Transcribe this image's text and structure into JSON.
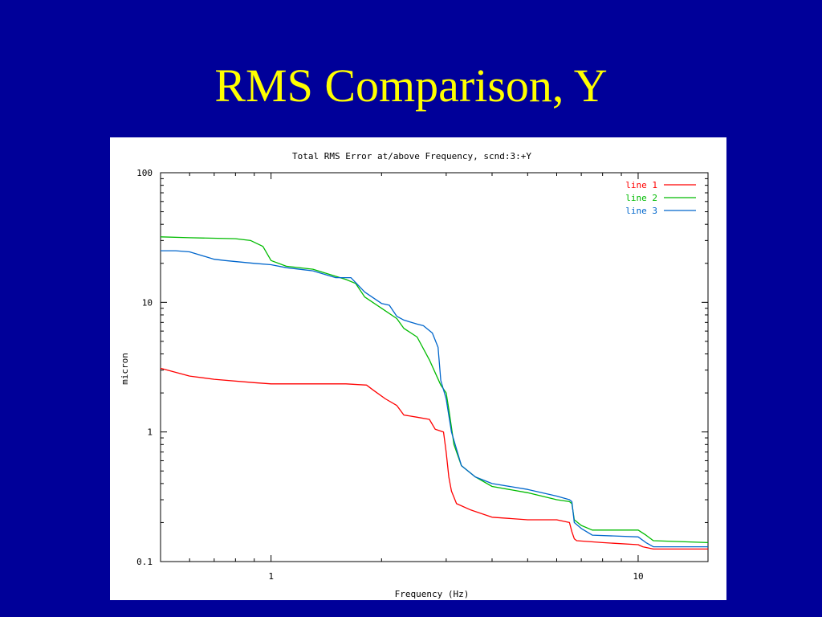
{
  "slide": {
    "title": "RMS Comparison, Y"
  },
  "colors": {
    "background": "#000099",
    "title": "#ffff00",
    "line1": "#ff0000",
    "line2": "#00bb00",
    "line3": "#0066cc"
  },
  "chart_data": {
    "type": "line",
    "title": "Total RMS Error at/above Frequency, scnd:3:+Y",
    "xlabel": "Frequency (Hz)",
    "ylabel": "micron",
    "xscale": "log",
    "yscale": "log",
    "xlim": [
      0.5,
      15.5
    ],
    "ylim": [
      0.1,
      100
    ],
    "x_ticks": [
      1,
      10
    ],
    "y_ticks": [
      0.1,
      1,
      10,
      100
    ],
    "x_tick_labels": [
      "1",
      "10"
    ],
    "y_tick_labels": [
      "0.1",
      "1",
      "10",
      "100"
    ],
    "legend_position": "top-right",
    "grid": false,
    "series": [
      {
        "name": "line 1",
        "color": "#ff0000",
        "x": [
          0.5,
          0.6,
          0.7,
          0.9,
          1.0,
          1.3,
          1.6,
          1.82,
          1.9,
          2.05,
          2.2,
          2.3,
          2.5,
          2.7,
          2.8,
          2.95,
          3.0,
          3.05,
          3.1,
          3.2,
          3.5,
          4.0,
          5.0,
          6.0,
          6.5,
          6.6,
          6.7,
          6.8,
          8.0,
          10.0,
          10.3,
          11.0,
          15.5
        ],
        "y": [
          3.1,
          2.7,
          2.55,
          2.4,
          2.35,
          2.35,
          2.35,
          2.3,
          2.1,
          1.8,
          1.6,
          1.35,
          1.3,
          1.25,
          1.05,
          1.0,
          0.7,
          0.45,
          0.35,
          0.28,
          0.25,
          0.22,
          0.21,
          0.21,
          0.2,
          0.17,
          0.15,
          0.145,
          0.14,
          0.135,
          0.13,
          0.125,
          0.125
        ]
      },
      {
        "name": "line 2",
        "color": "#00bb00",
        "x": [
          0.5,
          0.6,
          0.8,
          0.88,
          0.95,
          1.0,
          1.1,
          1.3,
          1.6,
          1.7,
          1.8,
          2.0,
          2.2,
          2.3,
          2.5,
          2.7,
          2.9,
          3.0,
          3.05,
          3.15,
          3.3,
          3.6,
          4.0,
          5.0,
          6.0,
          6.5,
          6.6,
          6.7,
          7.0,
          7.5,
          10.0,
          10.5,
          11.0,
          15.5
        ],
        "y": [
          32,
          31.5,
          31,
          30,
          27,
          21,
          19,
          18,
          15,
          14,
          11,
          9,
          7.5,
          6.3,
          5.4,
          3.6,
          2.3,
          2.0,
          1.5,
          0.8,
          0.55,
          0.45,
          0.38,
          0.34,
          0.3,
          0.29,
          0.28,
          0.21,
          0.19,
          0.175,
          0.175,
          0.16,
          0.145,
          0.14
        ]
      },
      {
        "name": "line 3",
        "color": "#0066cc",
        "x": [
          0.5,
          0.55,
          0.6,
          0.7,
          0.75,
          0.9,
          1.0,
          1.1,
          1.3,
          1.5,
          1.65,
          1.8,
          2.0,
          2.1,
          2.2,
          2.3,
          2.5,
          2.6,
          2.75,
          2.85,
          2.9,
          3.0,
          3.1,
          3.3,
          3.6,
          4.0,
          5.0,
          6.0,
          6.5,
          6.6,
          6.7,
          7.0,
          7.5,
          10.0,
          10.5,
          11.0,
          15.5
        ],
        "y": [
          25,
          25,
          24.5,
          21.5,
          21,
          20,
          19.5,
          18.5,
          17.5,
          15.5,
          15.5,
          12,
          9.8,
          9.5,
          7.8,
          7.3,
          6.8,
          6.6,
          5.8,
          4.5,
          2.5,
          1.8,
          1.0,
          0.55,
          0.45,
          0.4,
          0.36,
          0.32,
          0.3,
          0.29,
          0.2,
          0.18,
          0.16,
          0.155,
          0.14,
          0.13,
          0.13
        ]
      }
    ]
  }
}
